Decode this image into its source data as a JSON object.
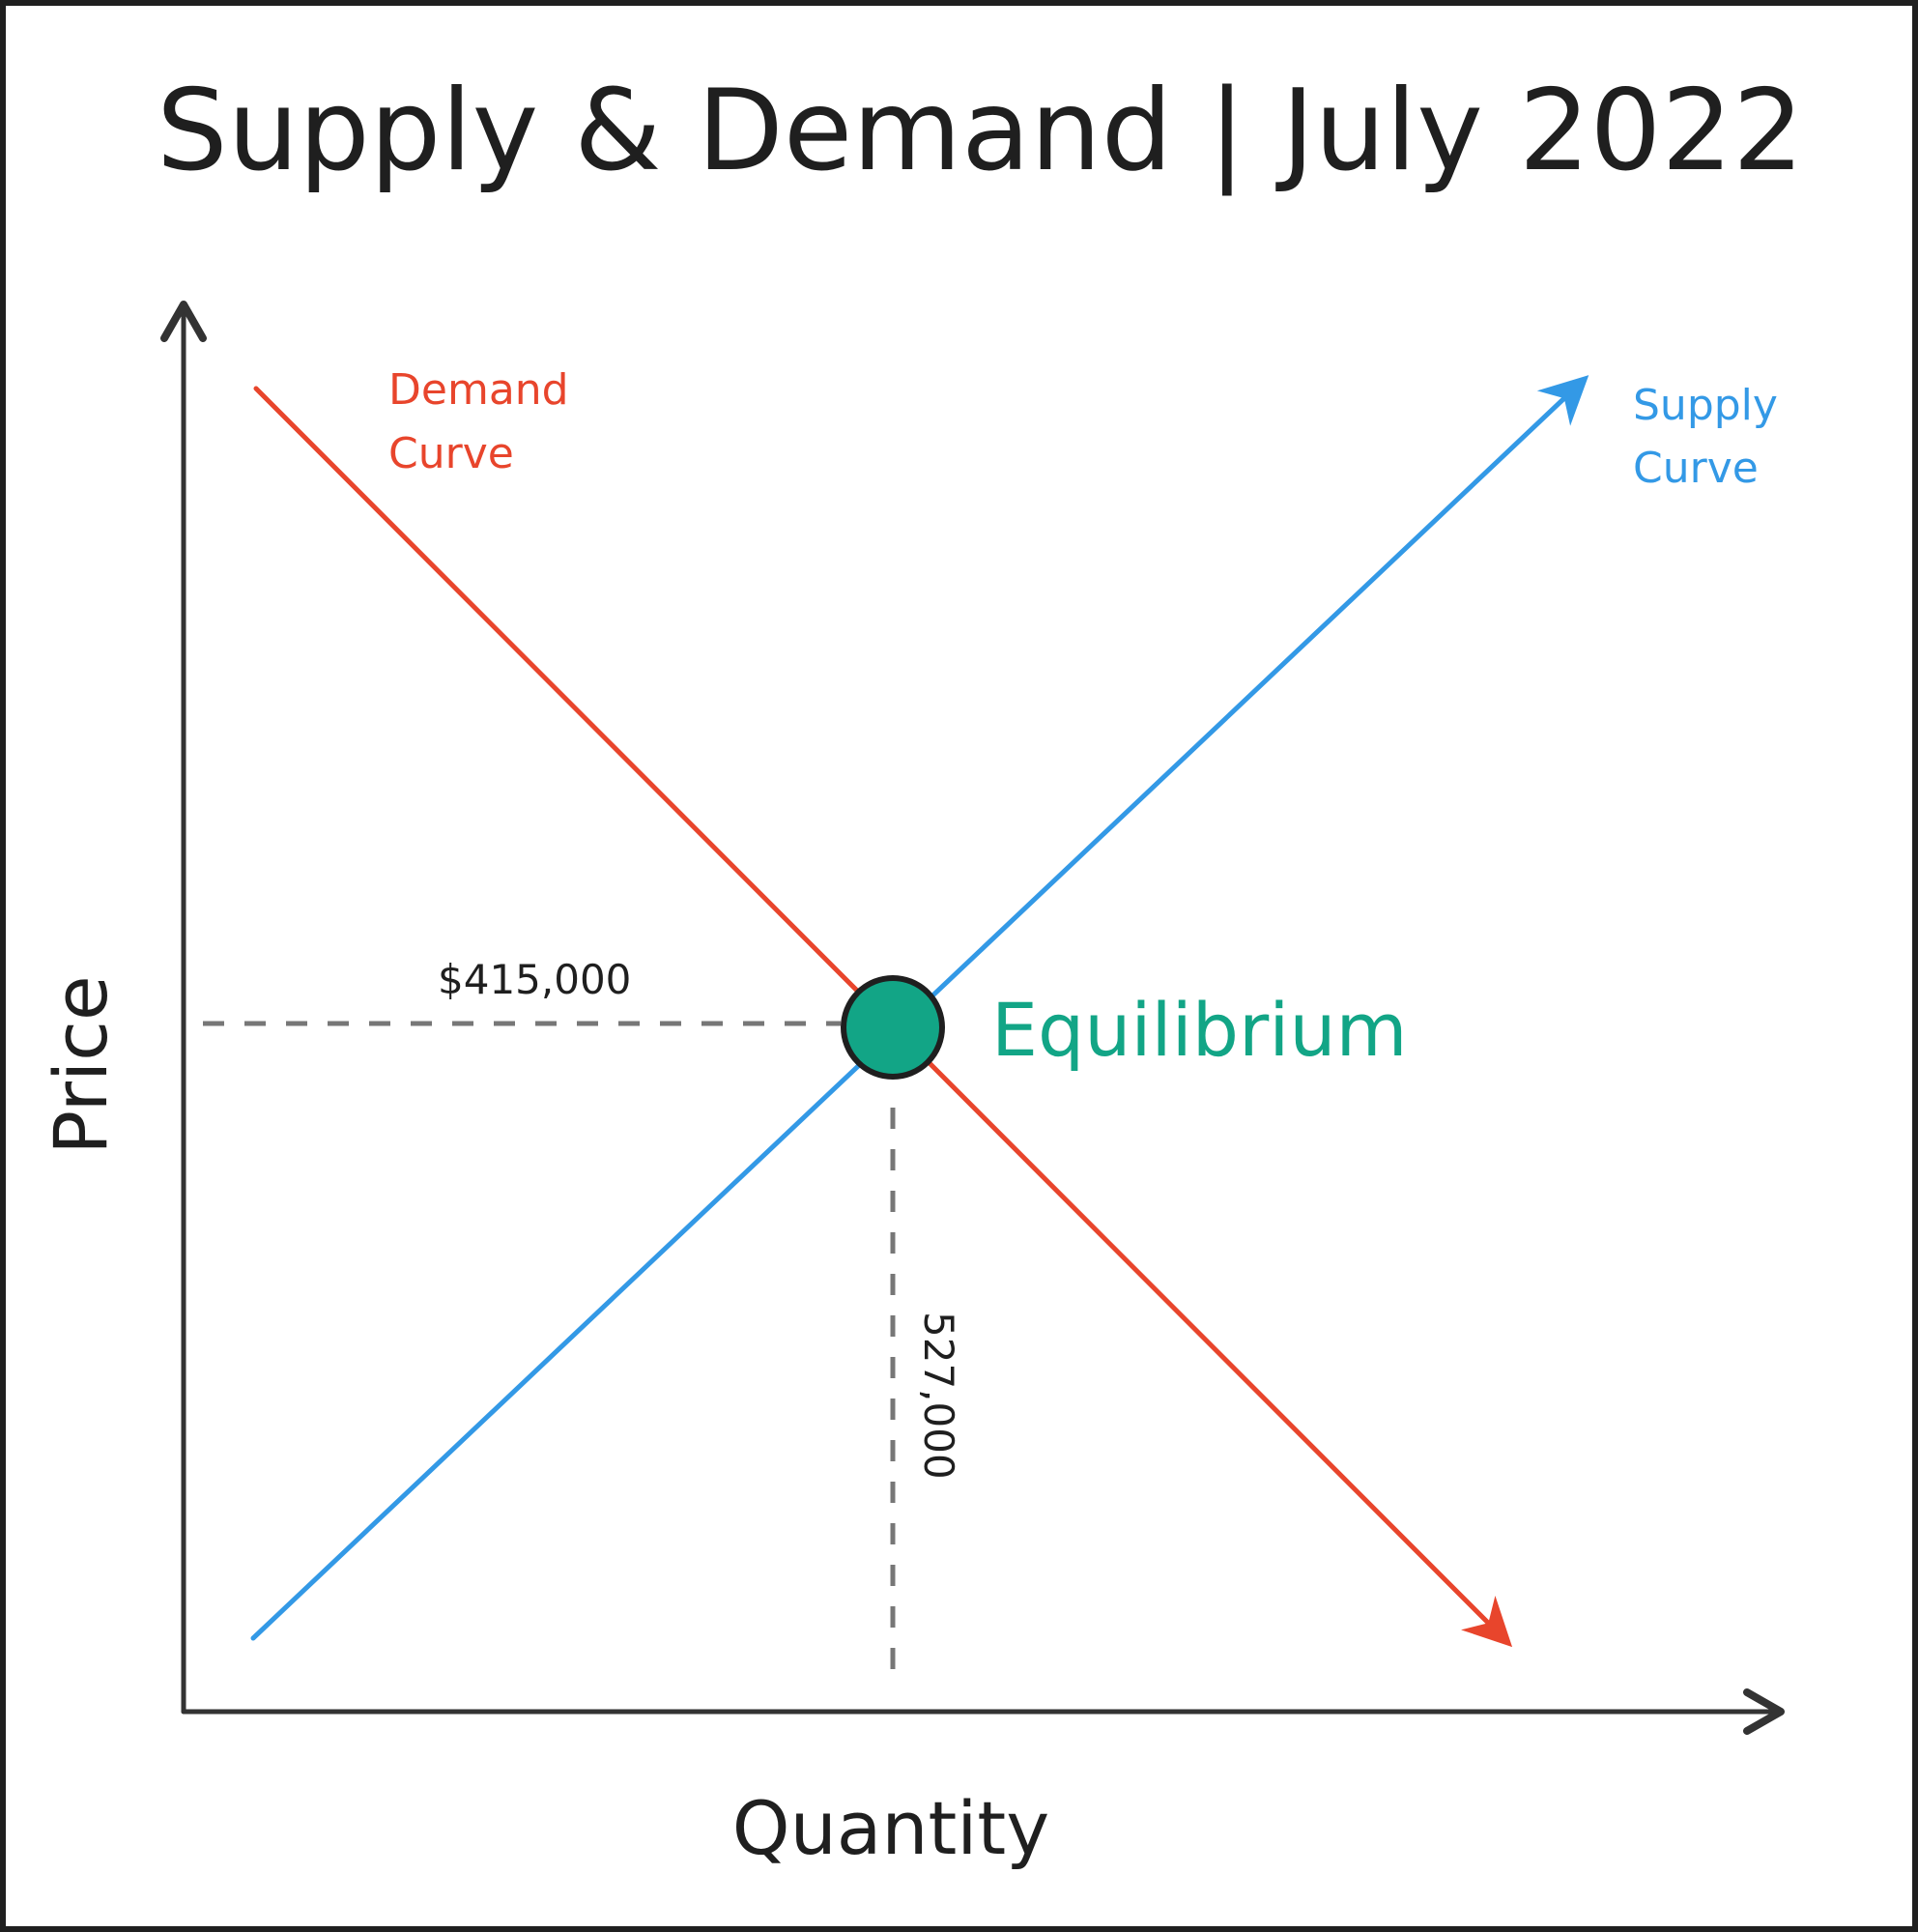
{
  "title": "Supply & Demand | July 2022",
  "axes": {
    "y_label": "Price",
    "x_label": "Quantity"
  },
  "curves": {
    "demand": {
      "label_line1": "Demand",
      "label_line2": "Curve",
      "color": "#e8452c"
    },
    "supply": {
      "label_line1": "Supply",
      "label_line2": "Curve",
      "color": "#3399e6"
    }
  },
  "equilibrium": {
    "label": "Equilibrium",
    "price_label": "$415,000",
    "quantity_label": "527,000",
    "color": "#12a586",
    "stroke_color": "#1f1f1f"
  },
  "colors": {
    "axis": "#333333",
    "guide": "#777777",
    "border": "#1f1f1f"
  }
}
